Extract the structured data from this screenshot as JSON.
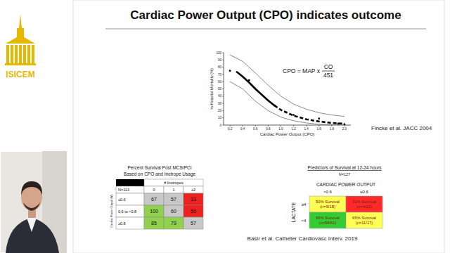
{
  "slide": {
    "title": "Cardiac Power Output (CPO) indicates outcome",
    "brand": "ISICEM",
    "equation": {
      "lhs": "CPO = MAP x",
      "numerator": "CO",
      "denominator": "451"
    },
    "citations": [
      "Fincke et al. JACC 2004",
      "Basir et al. Catheter Cardiovasc Interv. 2019"
    ]
  },
  "chart_data": {
    "type": "line",
    "x_label": "Cardiac Power Output (CPO)",
    "y_label": "In-Hospital Mortality (%)",
    "xlim": [
      0.1,
      2.1
    ],
    "ylim": [
      0,
      100
    ],
    "xticks": [
      0.2,
      0.4,
      0.6,
      0.8,
      {
        "value": 1,
        "label": "1.0"
      },
      1.2,
      1.4,
      1.6,
      1.8,
      {
        "value": 2,
        "label": "2.0"
      }
    ],
    "yticks": [
      0,
      10,
      20,
      30,
      40,
      50,
      60,
      70,
      80,
      90,
      100
    ],
    "series": [
      {
        "type": "line",
        "line_style": "solid",
        "color": "#555555",
        "x": [
          0.2,
          0.4,
          0.6,
          0.8,
          1.0,
          1.2,
          1.4,
          1.6,
          1.8,
          2.0
        ],
        "values": [
          97,
          88,
          72,
          55,
          40,
          29,
          22,
          17,
          14,
          12
        ]
      },
      {
        "type": "line",
        "line_style": "solid",
        "color": "#555555",
        "x": [
          0.2,
          0.4,
          0.6,
          0.8,
          1.0,
          1.2,
          1.4,
          1.6,
          1.8,
          2.0
        ],
        "values": [
          60,
          50,
          33,
          20,
          11,
          6,
          3,
          1,
          0.5,
          0
        ]
      },
      {
        "type": "line",
        "line_style": "solid",
        "color": "#000000",
        "x": [
          0.3,
          0.4,
          0.5,
          0.6,
          0.7,
          0.8,
          0.9
        ],
        "values": [
          74,
          67,
          59,
          50,
          42,
          34,
          27
        ]
      },
      {
        "type": "line",
        "line_style": "dashed",
        "color": "#000000",
        "x": [
          0.9,
          1.0,
          1.2,
          1.4,
          1.6,
          1.8,
          2.0
        ],
        "values": [
          27,
          21,
          13,
          8,
          5,
          3,
          2
        ]
      },
      {
        "type": "scatter",
        "marker": "circle",
        "color": "#000000",
        "x": [
          0.2,
          0.5,
          0.9,
          1.2,
          1.6,
          1.9,
          2.0
        ],
        "values": [
          75,
          62,
          27,
          14,
          9,
          2,
          1
        ]
      }
    ]
  },
  "table_left": {
    "title": "Percent Survival Post MCS/PCI",
    "subtitle": "Based on CPO and Inotrope Usage",
    "row_axis_label": "Cardiac Power Output (W)",
    "column_header": "# Inotropes",
    "corner": "N=113",
    "columns": [
      "0",
      "1",
      "≥2"
    ],
    "rows": [
      {
        "label": "≤0.6",
        "values": [
          67,
          57,
          33
        ],
        "colors": [
          "#c8c8c8",
          "#c8c8c8",
          "#ee2020"
        ]
      },
      {
        "label": "0.6 to <0.8",
        "values": [
          100,
          60,
          50
        ],
        "colors": [
          "#92d050",
          "#c8c8c8",
          "#ee2020"
        ]
      },
      {
        "label": "≥0.8",
        "values": [
          85,
          79,
          57
        ],
        "colors": [
          "#92d050",
          "#92d050",
          "#c8c8c8"
        ]
      }
    ]
  },
  "table_right": {
    "title": "Predictors of Survival at 12-24 hours",
    "subtitle": "N=127",
    "column_header": "CARDIAC POWER OUTPUT",
    "columns": [
      ">0.6",
      "≤0.6"
    ],
    "row_header": "LACTATE",
    "rows": [
      {
        "label": "≥4",
        "cells": [
          {
            "line1": "50% Survival",
            "line2": "(n=9/18)",
            "color": "#ffff55"
          },
          {
            "line1": "31% Survival",
            "line2": "(n=4/13)",
            "color": "#ff2a2a"
          }
        ]
      },
      {
        "label": "<4",
        "cells": [
          {
            "line1": "95% Survival",
            "line2": "(n=58/61)",
            "color": "#33cc33"
          },
          {
            "line1": "65% Survival",
            "line2": "(n=11/17)",
            "color": "#ffff55"
          }
        ]
      }
    ]
  }
}
